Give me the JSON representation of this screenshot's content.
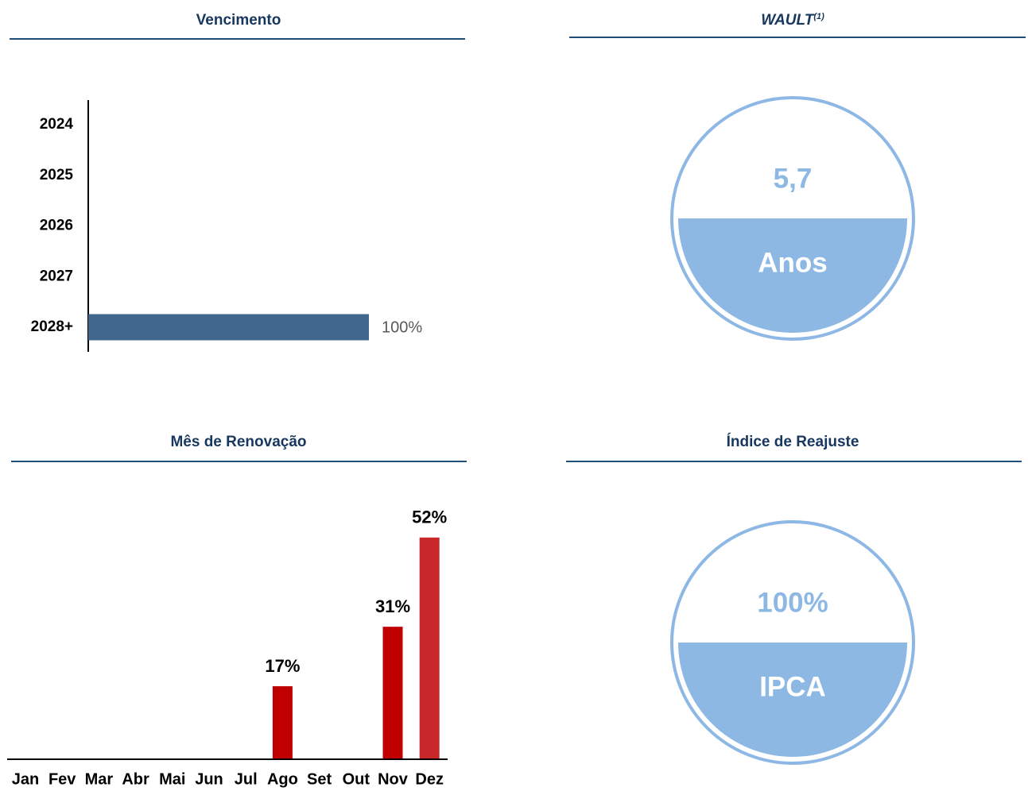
{
  "chart_data": [
    {
      "type": "hbar",
      "title": "Vencimento",
      "categories": [
        "2024",
        "2025",
        "2026",
        "2027",
        "2028+"
      ],
      "values": [
        0,
        0,
        0,
        0,
        100
      ],
      "value_labels": [
        null,
        null,
        null,
        null,
        "100%"
      ],
      "color": "#41678c"
    },
    {
      "type": "bar",
      "title": "Mês de Renovação",
      "categories": [
        "Jan",
        "Fev",
        "Mar",
        "Abr",
        "Mai",
        "Jun",
        "Jul",
        "Ago",
        "Set",
        "Out",
        "Nov",
        "Dez"
      ],
      "values": [
        0,
        0,
        0,
        0,
        0,
        0,
        0,
        17,
        0,
        0,
        31,
        52
      ],
      "value_labels": [
        null,
        null,
        null,
        null,
        null,
        null,
        null,
        "17%",
        null,
        null,
        "31%",
        "52%"
      ],
      "colors": [
        "#c00000",
        "#c00000",
        "#c00000",
        "#c00000",
        "#c00000",
        "#c00000",
        "#c00000",
        "#c00000",
        "#c00000",
        "#c00000",
        "#c00000",
        "#c9282a"
      ]
    }
  ],
  "gauges": [
    {
      "title": "WAULT",
      "title_note": "(1)",
      "value": "5,7",
      "unit": "Anos"
    },
    {
      "title": "Índice de Reajuste",
      "value": "100%",
      "unit": "IPCA"
    }
  ]
}
